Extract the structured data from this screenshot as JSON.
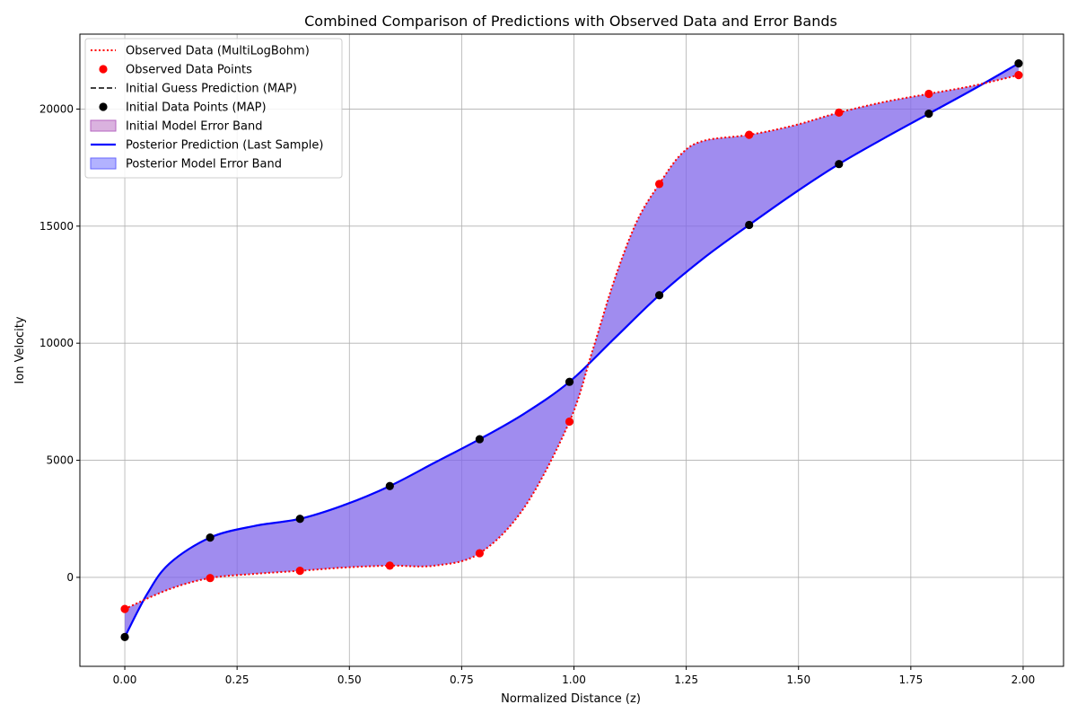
{
  "chart_data": {
    "type": "line",
    "title": "Combined Comparison of Predictions with Observed Data and Error Bands",
    "xlabel": "Normalized Distance (z)",
    "ylabel": "Ion Velocity",
    "xlim": [
      -0.1,
      2.09
    ],
    "ylim": [
      -3800,
      23200
    ],
    "xticks": [
      0.0,
      0.25,
      0.5,
      0.75,
      1.0,
      1.25,
      1.5,
      1.75,
      2.0
    ],
    "xtick_labels": [
      "0.00",
      "0.25",
      "0.50",
      "0.75",
      "1.00",
      "1.25",
      "1.50",
      "1.75",
      "2.00"
    ],
    "yticks": [
      0,
      5000,
      10000,
      15000,
      20000
    ],
    "ytick_labels": [
      "0",
      "5000",
      "10000",
      "15000",
      "20000"
    ],
    "grid": true,
    "legend_position": "top-left",
    "series": [
      {
        "name": "Observed Data (MultiLogBohm)",
        "kind": "dotted-line",
        "color": "#ff0000",
        "x": [
          0.0,
          0.1,
          0.19,
          0.29,
          0.39,
          0.49,
          0.59,
          0.69,
          0.79,
          0.89,
          0.99,
          1.04,
          1.09,
          1.14,
          1.19,
          1.24,
          1.29,
          1.39,
          1.49,
          1.59,
          1.69,
          1.79,
          1.89,
          1.99
        ],
        "y": [
          -1350,
          -500,
          -30,
          150,
          280,
          420,
          500,
          500,
          1030,
          3000,
          6650,
          9600,
          12700,
          15200,
          16800,
          18100,
          18650,
          18900,
          19300,
          19850,
          20300,
          20650,
          21000,
          21450
        ]
      },
      {
        "name": "Observed Data Points",
        "kind": "points",
        "color": "#ff0000",
        "x": [
          0.0,
          0.19,
          0.39,
          0.59,
          0.79,
          0.99,
          1.19,
          1.39,
          1.59,
          1.79,
          1.99
        ],
        "y": [
          -1350,
          -30,
          280,
          500,
          1030,
          6650,
          16800,
          18900,
          19850,
          20650,
          21450
        ]
      },
      {
        "name": "Initial Guess Prediction (MAP)",
        "kind": "dashed-line",
        "color": "#000000",
        "x": [
          0.0,
          0.05,
          0.1,
          0.19,
          0.29,
          0.39,
          0.49,
          0.59,
          0.69,
          0.79,
          0.89,
          0.99,
          1.09,
          1.19,
          1.29,
          1.39,
          1.49,
          1.59,
          1.69,
          1.79,
          1.89,
          1.99
        ],
        "y": [
          -2550,
          -700,
          600,
          1700,
          2200,
          2500,
          3100,
          3900,
          4900,
          5900,
          7000,
          8350,
          10200,
          12050,
          13650,
          15050,
          16400,
          17650,
          18750,
          19800,
          20850,
          21950
        ]
      },
      {
        "name": "Initial Data Points (MAP)",
        "kind": "points",
        "color": "#000000",
        "x": [
          0.0,
          0.19,
          0.39,
          0.59,
          0.79,
          0.99,
          1.19,
          1.39,
          1.59,
          1.79,
          1.99
        ],
        "y": [
          -2550,
          1700,
          2500,
          3900,
          5900,
          8350,
          12050,
          15050,
          17650,
          19800,
          21950
        ]
      },
      {
        "name": "Initial Model Error Band",
        "kind": "band",
        "color": "#b565c0"
      },
      {
        "name": "Posterior Prediction (Last Sample)",
        "kind": "solid-line",
        "color": "#0000ff",
        "x": [
          0.0,
          0.05,
          0.1,
          0.19,
          0.29,
          0.39,
          0.49,
          0.59,
          0.69,
          0.79,
          0.89,
          0.99,
          1.09,
          1.19,
          1.29,
          1.39,
          1.49,
          1.59,
          1.69,
          1.79,
          1.89,
          1.99
        ],
        "y": [
          -2550,
          -700,
          600,
          1700,
          2200,
          2500,
          3100,
          3900,
          4900,
          5900,
          7000,
          8350,
          10200,
          12050,
          13650,
          15050,
          16400,
          17650,
          18750,
          19800,
          20850,
          21950
        ]
      },
      {
        "name": "Posterior Model Error Band",
        "kind": "band",
        "color": "#6666ff"
      }
    ]
  }
}
